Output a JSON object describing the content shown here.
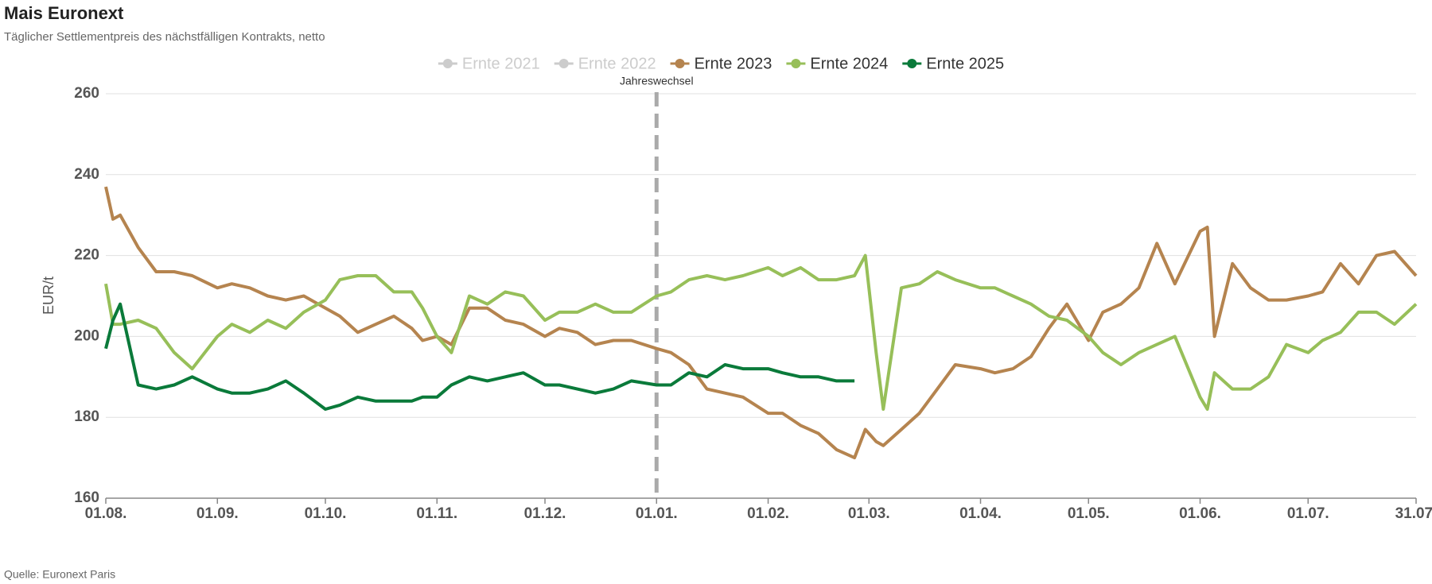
{
  "chart_data": {
    "type": "line",
    "title": "Mais Euronext",
    "subtitle": "Täglicher Settlementpreis des nächstfälligen Kontrakts, netto",
    "y_label": "EUR/t",
    "source": "Quelle: Euronext Paris",
    "x": [
      "01.08.",
      "03.08.",
      "05.08.",
      "10.08.",
      "15.08.",
      "20.08.",
      "25.08.",
      "01.09.",
      "05.09.",
      "10.09.",
      "15.09.",
      "20.09.",
      "25.09.",
      "01.10.",
      "05.10.",
      "10.10.",
      "15.10.",
      "20.10.",
      "25.10.",
      "28.10.",
      "01.11.",
      "05.11.",
      "10.11.",
      "15.11.",
      "20.11.",
      "25.11.",
      "01.12.",
      "05.12.",
      "10.12.",
      "15.12.",
      "20.12.",
      "25.12.",
      "01.01.",
      "05.01.",
      "10.01.",
      "15.01.",
      "20.01.",
      "25.01.",
      "01.02.",
      "05.02.",
      "10.02.",
      "15.02.",
      "20.02.",
      "25.02.",
      "28.02.",
      "03.03.",
      "05.03.",
      "10.03.",
      "15.03.",
      "20.03.",
      "25.03.",
      "01.04.",
      "05.04.",
      "10.04.",
      "15.04.",
      "20.04.",
      "25.04.",
      "01.05.",
      "05.05.",
      "10.05.",
      "15.05.",
      "20.05.",
      "25.05.",
      "01.06.",
      "03.06.",
      "05.06.",
      "10.06.",
      "15.06.",
      "20.06.",
      "25.06.",
      "01.07.",
      "05.07.",
      "10.07.",
      "15.07.",
      "20.07.",
      "25.07.",
      "31.07."
    ],
    "xlim": [
      "01.08.",
      "31.07."
    ],
    "xticks": [
      "01.08.",
      "01.09.",
      "01.10.",
      "01.11.",
      "01.12.",
      "01.01.",
      "01.02.",
      "01.03.",
      "01.04.",
      "01.05.",
      "01.06.",
      "01.07.",
      "31.07."
    ],
    "ylim": [
      160,
      260
    ],
    "yticks": [
      160,
      180,
      200,
      220,
      240,
      260
    ],
    "grid": true,
    "legend": "top",
    "annotations": [
      {
        "x": "01.01.",
        "label": "Jahreswechsel"
      }
    ],
    "series": [
      {
        "name": "Ernte 2021",
        "color": "#cccccc",
        "hidden": true
      },
      {
        "name": "Ernte 2022",
        "color": "#cccccc",
        "hidden": true
      },
      {
        "name": "Ernte 2023",
        "color": "#b5844f",
        "values": [
          237,
          229,
          230,
          222,
          216,
          216,
          215,
          212,
          213,
          212,
          210,
          209,
          210,
          207,
          205,
          201,
          203,
          205,
          202,
          199,
          200,
          198,
          207,
          207,
          204,
          203,
          200,
          202,
          201,
          198,
          199,
          199,
          197,
          196,
          193,
          187,
          186,
          185,
          181,
          181,
          178,
          176,
          172,
          170,
          177,
          174,
          173,
          177,
          181,
          187,
          193,
          192,
          191,
          192,
          195,
          202,
          208,
          199,
          206,
          208,
          212,
          223,
          213,
          226,
          227,
          200,
          218,
          212,
          209,
          209,
          210,
          211,
          218,
          213,
          220,
          221,
          215
        ]
      },
      {
        "name": "Ernte 2024",
        "color": "#97bf59",
        "values": [
          213,
          203,
          203,
          204,
          202,
          196,
          192,
          200,
          203,
          201,
          204,
          202,
          206,
          209,
          214,
          215,
          215,
          211,
          211,
          207,
          200,
          196,
          210,
          208,
          211,
          210,
          204,
          206,
          206,
          208,
          206,
          206,
          210,
          211,
          214,
          215,
          214,
          215,
          217,
          215,
          217,
          214,
          214,
          215,
          220,
          196,
          182,
          212,
          213,
          216,
          214,
          212,
          212,
          210,
          208,
          205,
          204,
          200,
          196,
          193,
          196,
          198,
          200,
          185,
          182,
          191,
          187,
          187,
          190,
          198,
          196,
          199,
          201,
          206,
          206,
          203,
          208
        ]
      },
      {
        "name": "Ernte 2025",
        "color": "#0a7a3a",
        "values": [
          197,
          204,
          208,
          188,
          187,
          188,
          190,
          187,
          186,
          186,
          187,
          189,
          186,
          182,
          183,
          185,
          184,
          184,
          184,
          185,
          185,
          188,
          190,
          189,
          190,
          191,
          188,
          188,
          187,
          186,
          187,
          189,
          188,
          188,
          191,
          190,
          193,
          192,
          192,
          191,
          190,
          190,
          189,
          189,
          null,
          null,
          null,
          null,
          null,
          null,
          null,
          null,
          null,
          null,
          null,
          null,
          null,
          null,
          null,
          null,
          null,
          null,
          null,
          null,
          null,
          null,
          null,
          null,
          null,
          null,
          null,
          null,
          null,
          null,
          null,
          null,
          null
        ]
      }
    ]
  }
}
